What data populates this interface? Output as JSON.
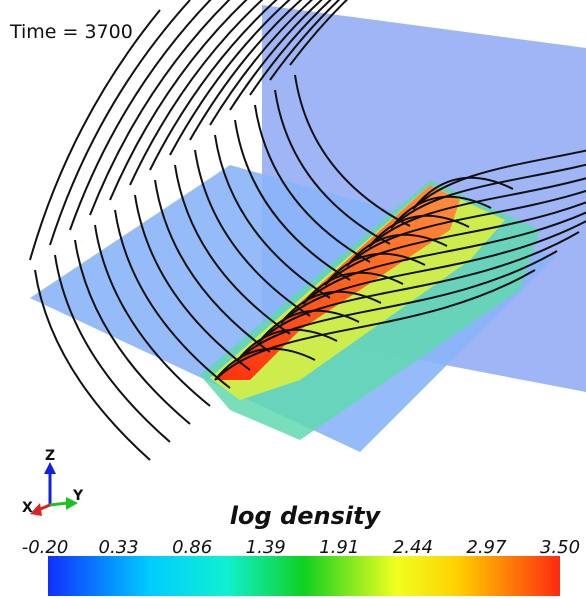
{
  "time_label": "Time = 3700",
  "axes": {
    "z": "Z",
    "y": "Y",
    "x": "X"
  },
  "colorbar": {
    "title": "log density",
    "ticks": [
      "-0.20",
      "0.33",
      "0.86",
      "1.39",
      "1.91",
      "2.44",
      "2.97",
      "3.50"
    ]
  }
}
